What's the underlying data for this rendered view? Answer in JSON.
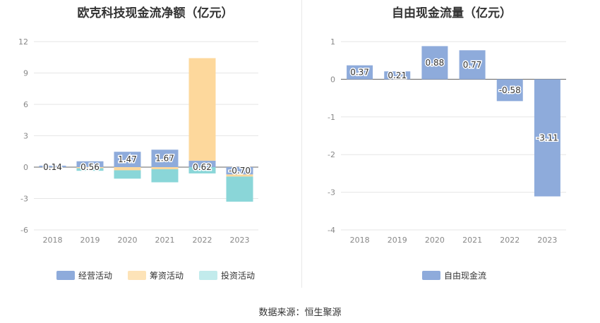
{
  "chart_data": [
    {
      "type": "bar",
      "stacked": true,
      "title": "欧克科技现金流净额（亿元）",
      "categories": [
        "2018",
        "2019",
        "2020",
        "2021",
        "2022",
        "2023"
      ],
      "ylim": [
        -6,
        12
      ],
      "yticks": [
        -6,
        -3,
        0,
        3,
        6,
        9,
        12
      ],
      "grid": true,
      "legend_position": "bottom",
      "series": [
        {
          "name": "经营活动",
          "color": "#8eabdb",
          "values": [
            0.14,
            0.56,
            1.47,
            1.67,
            0.62,
            -0.7
          ],
          "labels": [
            "0.14",
            "0.56",
            "1.47",
            "1.67",
            "0.62",
            "-0.70"
          ]
        },
        {
          "name": "筹资活动",
          "color": "#fdd89c",
          "values": [
            0.0,
            -0.1,
            -0.3,
            -0.2,
            9.8,
            -0.2
          ]
        },
        {
          "name": "投资活动",
          "color": "#8ad6d8",
          "values": [
            0.0,
            -0.25,
            -0.8,
            -1.25,
            -0.6,
            -2.4
          ]
        }
      ]
    },
    {
      "type": "bar",
      "title": "自由现金流量（亿元）",
      "categories": [
        "2018",
        "2019",
        "2020",
        "2021",
        "2022",
        "2023"
      ],
      "ylim": [
        -4,
        1
      ],
      "yticks": [
        -4,
        -3,
        -2,
        -1,
        0,
        1
      ],
      "grid": true,
      "legend_position": "bottom",
      "series": [
        {
          "name": "自由现金流",
          "color": "#8eabdb",
          "values": [
            0.37,
            0.21,
            0.88,
            0.77,
            -0.58,
            -3.11
          ],
          "labels": [
            "0.37",
            "0.21",
            "0.88",
            "0.77",
            "-0.58",
            "-3.11"
          ]
        }
      ]
    }
  ],
  "source": "数据来源：恒生聚源"
}
